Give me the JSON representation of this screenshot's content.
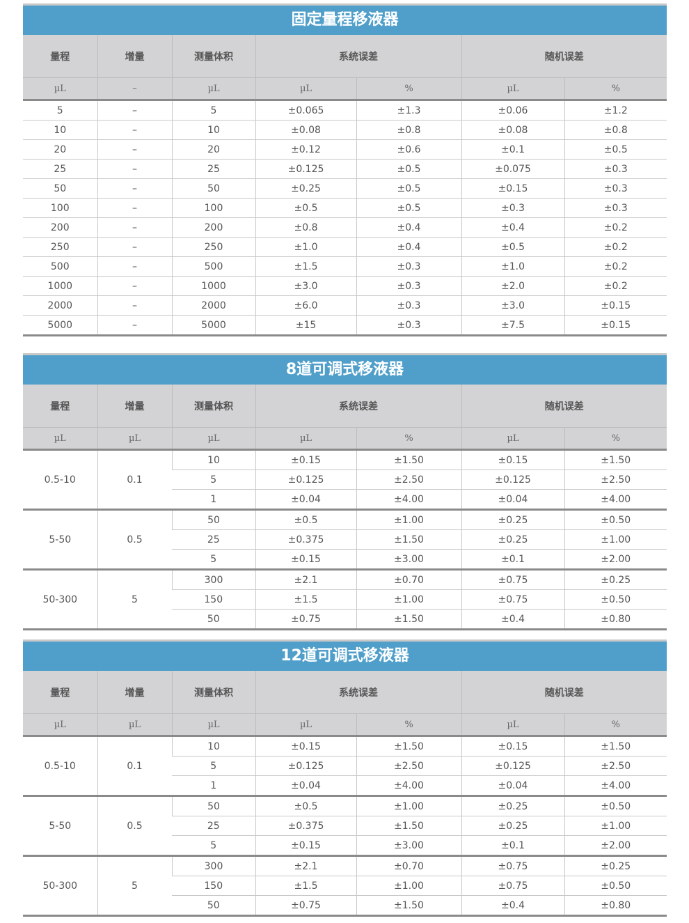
{
  "headers": {
    "range": "量程",
    "increment": "增量",
    "test_volume": "测量体积",
    "systematic_error": "系统误差",
    "random_error": "随机误差"
  },
  "tables": [
    {
      "title": "固定量程移液器",
      "units": [
        "µL",
        "–",
        "µL",
        "µL",
        "%",
        "µL",
        "%"
      ],
      "rows": [
        [
          "5",
          "–",
          "5",
          "±0.065",
          "±1.3",
          "±0.06",
          "±1.2"
        ],
        [
          "10",
          "–",
          "10",
          "±0.08",
          "±0.8",
          "±0.08",
          "±0.8"
        ],
        [
          "20",
          "–",
          "20",
          "±0.12",
          "±0.6",
          "±0.1",
          "±0.5"
        ],
        [
          "25",
          "–",
          "25",
          "±0.125",
          "±0.5",
          "±0.075",
          "±0.3"
        ],
        [
          "50",
          "–",
          "50",
          "±0.25",
          "±0.5",
          "±0.15",
          "±0.3"
        ],
        [
          "100",
          "–",
          "100",
          "±0.5",
          "±0.5",
          "±0.3",
          "±0.3"
        ],
        [
          "200",
          "–",
          "200",
          "±0.8",
          "±0.4",
          "±0.4",
          "±0.2"
        ],
        [
          "250",
          "–",
          "250",
          "±1.0",
          "±0.4",
          "±0.5",
          "±0.2"
        ],
        [
          "500",
          "–",
          "500",
          "±1.5",
          "±0.3",
          "±1.0",
          "±0.2"
        ],
        [
          "1000",
          "–",
          "1000",
          "±3.0",
          "±0.3",
          "±2.0",
          "±0.2"
        ],
        [
          "2000",
          "–",
          "2000",
          "±6.0",
          "±0.3",
          "±3.0",
          "±0.15"
        ],
        [
          "5000",
          "–",
          "5000",
          "±15",
          "±0.3",
          "±7.5",
          "±0.15"
        ]
      ]
    },
    {
      "title": "8道可调式移液器",
      "units": [
        "µL",
        "µL",
        "µL",
        "µL",
        "%",
        "µL",
        "%"
      ],
      "groups": [
        {
          "range": "0.5-10",
          "increment": "0.1",
          "rows": [
            [
              "10",
              "±0.15",
              "±1.50",
              "±0.15",
              "±1.50"
            ],
            [
              "5",
              "±0.125",
              "±2.50",
              "±0.125",
              "±2.50"
            ],
            [
              "1",
              "±0.04",
              "±4.00",
              "±0.04",
              "±4.00"
            ]
          ]
        },
        {
          "range": "5-50",
          "increment": "0.5",
          "rows": [
            [
              "50",
              "±0.5",
              "±1.00",
              "±0.25",
              "±0.50"
            ],
            [
              "25",
              "±0.375",
              "±1.50",
              "±0.25",
              "±1.00"
            ],
            [
              "5",
              "±0.15",
              "±3.00",
              "±0.1",
              "±2.00"
            ]
          ]
        },
        {
          "range": "50-300",
          "increment": "5",
          "rows": [
            [
              "300",
              "±2.1",
              "±0.70",
              "±0.75",
              "±0.25"
            ],
            [
              "150",
              "±1.5",
              "±1.00",
              "±0.75",
              "±0.50"
            ],
            [
              "50",
              "±0.75",
              "±1.50",
              "±0.4",
              "±0.80"
            ]
          ]
        }
      ]
    },
    {
      "title": "12道可调式移液器",
      "units": [
        "µL",
        "µL",
        "µL",
        "µL",
        "%",
        "µL",
        "%"
      ],
      "groups": [
        {
          "range": "0.5-10",
          "increment": "0.1",
          "rows": [
            [
              "10",
              "±0.15",
              "±1.50",
              "±0.15",
              "±1.50"
            ],
            [
              "5",
              "±0.125",
              "±2.50",
              "±0.125",
              "±2.50"
            ],
            [
              "1",
              "±0.04",
              "±4.00",
              "±0.04",
              "±4.00"
            ]
          ]
        },
        {
          "range": "5-50",
          "increment": "0.5",
          "rows": [
            [
              "50",
              "±0.5",
              "±1.00",
              "±0.25",
              "±0.50"
            ],
            [
              "25",
              "±0.375",
              "±1.50",
              "±0.25",
              "±1.00"
            ],
            [
              "5",
              "±0.15",
              "±3.00",
              "±0.1",
              "±2.00"
            ]
          ]
        },
        {
          "range": "50-300",
          "increment": "5",
          "rows": [
            [
              "300",
              "±2.1",
              "±0.70",
              "±0.75",
              "±0.25"
            ],
            [
              "150",
              "±1.5",
              "±1.00",
              "±0.75",
              "±0.50"
            ],
            [
              "50",
              "±0.75",
              "±1.50",
              "±0.4",
              "±0.80"
            ]
          ]
        }
      ]
    }
  ]
}
